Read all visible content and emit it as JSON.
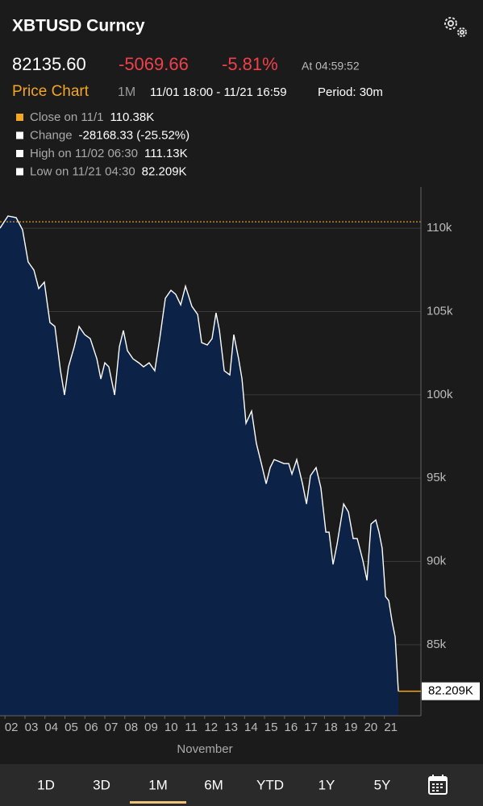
{
  "header": {
    "title": "XBTUSD Curncy",
    "price": "82135.60",
    "change": "-5069.66",
    "change_pct": "-5.81%",
    "time": "At 04:59:52",
    "section": "Price Chart",
    "range": "1M",
    "dates": "11/01 18:00 - 11/21 16:59",
    "period": "Period: 30m"
  },
  "legend": [
    {
      "label": "Close on 11/1",
      "value": "110.38K"
    },
    {
      "label": "Change",
      "value": "-28168.33 (-25.52%)"
    },
    {
      "label": "High on 11/02 06:30",
      "value": "111.13K"
    },
    {
      "label": "Low on 11/21 04:30",
      "value": "82.209K"
    }
  ],
  "chart_data": {
    "type": "line",
    "xlabel": "November",
    "color": "#ffffff",
    "fill": "#0c2246",
    "x": [
      1.75,
      2.15,
      2.56,
      2.88,
      3.16,
      3.45,
      3.69,
      3.97,
      4.25,
      4.5,
      4.78,
      4.98,
      5.18,
      5.47,
      5.71,
      5.99,
      6.27,
      6.6,
      6.8,
      7.0,
      7.2,
      7.49,
      7.73,
      7.93,
      8.13,
      8.41,
      8.7,
      8.94,
      9.22,
      9.5,
      9.75,
      10.03,
      10.31,
      10.55,
      10.8,
      11.04,
      11.36,
      11.65,
      11.85,
      12.13,
      12.37,
      12.57,
      12.74,
      12.98,
      13.26,
      13.46,
      13.7,
      13.87,
      14.07,
      14.35,
      14.59,
      14.84,
      15.08,
      15.28,
      15.48,
      15.68,
      15.97,
      16.21,
      16.37,
      16.61,
      16.9,
      17.1,
      17.3,
      17.58,
      17.82,
      18.07,
      18.23,
      18.43,
      18.63,
      18.96,
      19.2,
      19.44,
      19.64,
      19.92,
      20.13,
      20.33,
      20.57,
      20.73,
      20.89,
      21.06,
      21.22,
      21.38,
      21.54,
      21.7
    ],
    "series": [
      {
        "name": "XBTUSD",
        "color": "#ffffff",
        "values": [
          110.0,
          110.73,
          110.63,
          109.9,
          107.97,
          107.48,
          106.37,
          106.76,
          104.34,
          104.1,
          101.44,
          99.99,
          101.68,
          102.89,
          104.1,
          103.61,
          103.37,
          102.16,
          100.95,
          101.92,
          101.68,
          99.99,
          102.89,
          103.86,
          102.65,
          102.16,
          101.92,
          101.68,
          101.92,
          101.44,
          103.37,
          105.79,
          106.27,
          106.03,
          105.4,
          106.52,
          105.31,
          104.82,
          103.13,
          102.99,
          103.37,
          104.92,
          103.86,
          101.44,
          101.19,
          103.61,
          102.16,
          100.95,
          98.29,
          99.02,
          97.08,
          95.87,
          94.66,
          95.63,
          96.11,
          96.02,
          95.87,
          95.87,
          95.24,
          96.11,
          94.66,
          93.45,
          95.15,
          95.63,
          94.42,
          91.76,
          91.76,
          89.82,
          91.03,
          93.45,
          92.97,
          91.37,
          91.37,
          90.07,
          88.86,
          92.24,
          92.49,
          91.76,
          90.79,
          87.89,
          87.65,
          86.44,
          85.47,
          82.209
        ]
      }
    ],
    "close_line": 110.38,
    "close_color": "#f5a623",
    "last_label": "82.209K",
    "xlim": [
      1.75,
      22.83
    ],
    "xticks": [
      {
        "value": 2,
        "label": "02"
      },
      {
        "value": 3,
        "label": "03"
      },
      {
        "value": 4,
        "label": "04"
      },
      {
        "value": 5,
        "label": "05"
      },
      {
        "value": 6,
        "label": "06"
      },
      {
        "value": 7,
        "label": "07"
      },
      {
        "value": 8,
        "label": "08"
      },
      {
        "value": 9,
        "label": "09"
      },
      10,
      11,
      12,
      13,
      14,
      15,
      16,
      17,
      18,
      19,
      20,
      21
    ],
    "ylim": [
      80.74,
      112.47
    ],
    "yticks": [
      {
        "value": 85,
        "label": "85k"
      },
      {
        "value": 90,
        "label": "90k"
      },
      {
        "value": 95,
        "label": "95k"
      },
      {
        "value": 100,
        "label": "100k"
      },
      {
        "value": 105,
        "label": "105k"
      },
      {
        "value": 110,
        "label": "110k"
      }
    ],
    "grid": true
  },
  "tabs": {
    "items": [
      "1D",
      "3D",
      "1M",
      "6M",
      "YTD",
      "1Y",
      "5Y"
    ],
    "selected": 2
  }
}
